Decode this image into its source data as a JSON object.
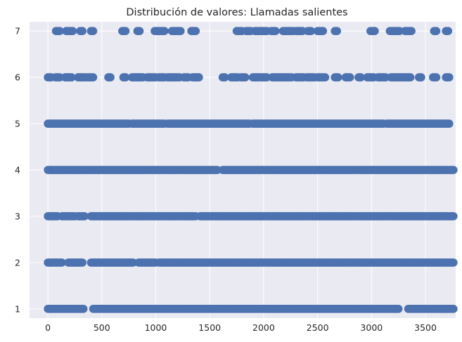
{
  "chart_data": {
    "type": "scatter",
    "title": "Distribución de valores: Llamadas salientes",
    "xlabel": "",
    "ylabel": "",
    "xlim": [
      -170,
      3780
    ],
    "ylim": [
      0.8,
      7.2
    ],
    "x_ticks": [
      0,
      500,
      1000,
      1500,
      2000,
      2500,
      3000,
      3500
    ],
    "x_tick_labels": [
      "0",
      "500",
      "1000",
      "1500",
      "2000",
      "2500",
      "3000",
      "3500"
    ],
    "y_ticks": [
      1,
      2,
      3,
      4,
      5,
      6,
      7
    ],
    "y_tick_labels": [
      "1",
      "2",
      "3",
      "4",
      "5",
      "6",
      "7"
    ],
    "grid": true,
    "legend": "none",
    "colors": {
      "background": "#eaeaf2",
      "marker": "#4c72b0",
      "grid": "#ffffff",
      "text": "#262626"
    },
    "series": [
      {
        "y": 7,
        "segments": [
          [
            75,
            110
          ],
          [
            170,
            230
          ],
          [
            300,
            320
          ],
          [
            400,
            420
          ],
          [
            690,
            720
          ],
          [
            830,
            850
          ],
          [
            990,
            1080
          ],
          [
            1150,
            1230
          ],
          [
            1330,
            1370
          ],
          [
            1750,
            1800
          ],
          [
            1840,
            1880
          ],
          [
            1920,
            2030
          ],
          [
            2070,
            2110
          ],
          [
            2180,
            2270
          ],
          [
            2300,
            2360
          ],
          [
            2410,
            2440
          ],
          [
            2500,
            2550
          ],
          [
            2660,
            2680
          ],
          [
            2990,
            3030
          ],
          [
            3170,
            3260
          ],
          [
            3310,
            3370
          ],
          [
            3580,
            3600
          ],
          [
            3690,
            3710
          ]
        ]
      },
      {
        "y": 6,
        "segments": [
          [
            0,
            30
          ],
          [
            70,
            110
          ],
          [
            160,
            220
          ],
          [
            280,
            350
          ],
          [
            370,
            420
          ],
          [
            560,
            580
          ],
          [
            700,
            720
          ],
          [
            780,
            880
          ],
          [
            920,
            1000
          ],
          [
            1030,
            1080
          ],
          [
            1110,
            1220
          ],
          [
            1260,
            1300
          ],
          [
            1340,
            1400
          ],
          [
            1620,
            1640
          ],
          [
            1700,
            1760
          ],
          [
            1790,
            1830
          ],
          [
            1900,
            1960
          ],
          [
            1980,
            2030
          ],
          [
            2080,
            2260
          ],
          [
            2300,
            2370
          ],
          [
            2400,
            2470
          ],
          [
            2500,
            2570
          ],
          [
            2660,
            2690
          ],
          [
            2760,
            2800
          ],
          [
            2880,
            2900
          ],
          [
            2960,
            3020
          ],
          [
            3060,
            3130
          ],
          [
            3180,
            3360
          ],
          [
            3440,
            3460
          ],
          [
            3570,
            3600
          ],
          [
            3690,
            3720
          ]
        ]
      },
      {
        "y": 5,
        "segments": [
          [
            0,
            750
          ],
          [
            780,
            1080
          ],
          [
            1110,
            1870
          ],
          [
            1900,
            3110
          ],
          [
            3140,
            3720
          ]
        ]
      },
      {
        "y": 4,
        "segments": [
          [
            0,
            1570
          ],
          [
            1620,
            3760
          ]
        ]
      },
      {
        "y": 3,
        "segments": [
          [
            0,
            90
          ],
          [
            130,
            250
          ],
          [
            280,
            340
          ],
          [
            400,
            1370
          ],
          [
            1410,
            3760
          ]
        ]
      },
      {
        "y": 2,
        "segments": [
          [
            0,
            130
          ],
          [
            190,
            320
          ],
          [
            400,
            790
          ],
          [
            840,
            1000
          ],
          [
            1030,
            3760
          ]
        ]
      },
      {
        "y": 1,
        "segments": [
          [
            0,
            330
          ],
          [
            420,
            3250
          ],
          [
            3340,
            3760
          ]
        ]
      }
    ]
  }
}
